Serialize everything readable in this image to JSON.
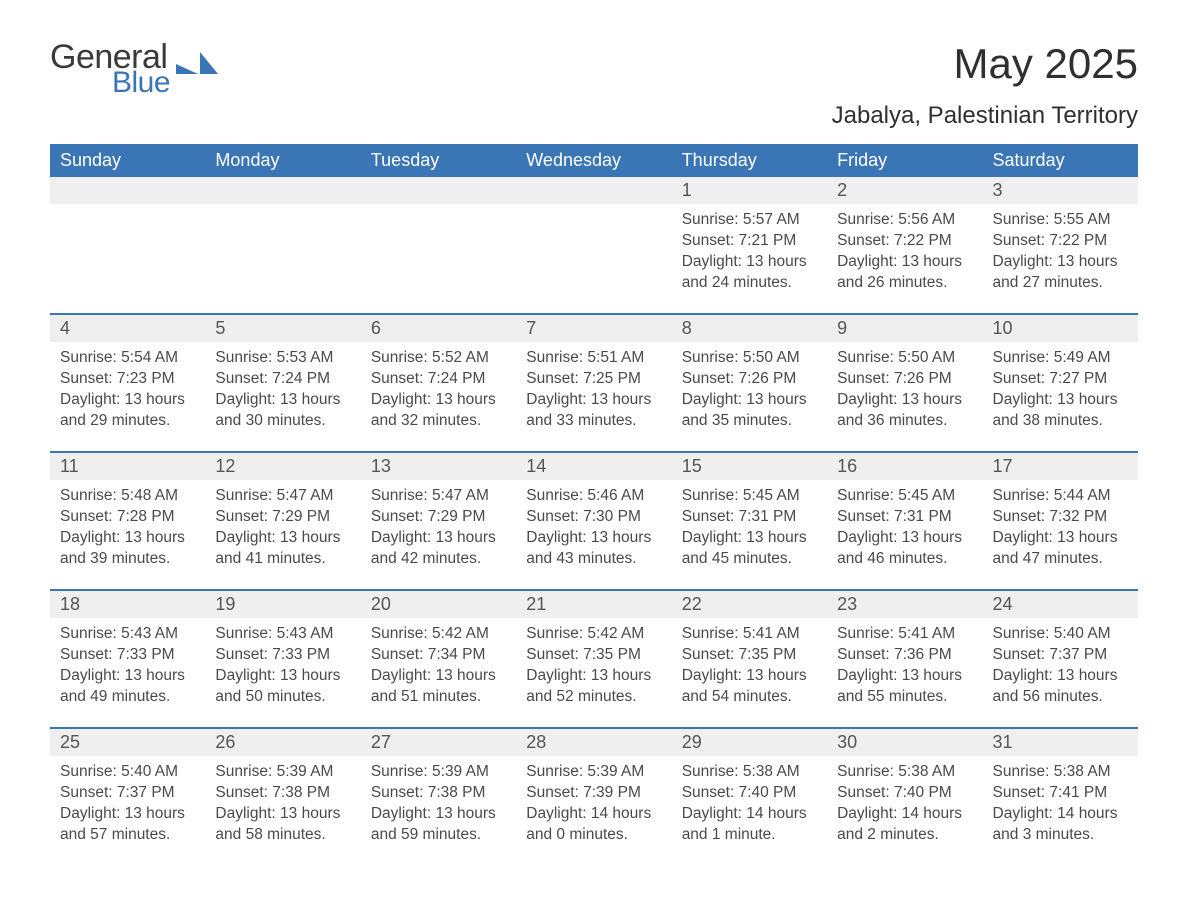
{
  "logo": {
    "general": "General",
    "blue": "Blue",
    "shape_color": "#3a75b6"
  },
  "header": {
    "title": "May 2025",
    "subtitle": "Jabalya, Palestinian Territory"
  },
  "colors": {
    "header_bg": "#3a75b6",
    "header_text": "#ffffff",
    "daynum_bg": "#efefef",
    "row_border": "#3a75b6",
    "body_text": "#4a4a4a",
    "title_text": "#2f2f2f",
    "logo_gray": "#3a3a3a",
    "logo_blue": "#3a75b6",
    "background": "#ffffff"
  },
  "fonts": {
    "title_size_pt": 32,
    "subtitle_size_pt": 18,
    "weekday_size_pt": 14,
    "daynum_size_pt": 14,
    "body_size_pt": 12,
    "family": "Arial"
  },
  "calendar": {
    "type": "table",
    "weekdays": [
      "Sunday",
      "Monday",
      "Tuesday",
      "Wednesday",
      "Thursday",
      "Friday",
      "Saturday"
    ],
    "weeks": [
      [
        null,
        null,
        null,
        null,
        {
          "n": "1",
          "sunrise": "Sunrise: 5:57 AM",
          "sunset": "Sunset: 7:21 PM",
          "daylight": "Daylight: 13 hours and 24 minutes."
        },
        {
          "n": "2",
          "sunrise": "Sunrise: 5:56 AM",
          "sunset": "Sunset: 7:22 PM",
          "daylight": "Daylight: 13 hours and 26 minutes."
        },
        {
          "n": "3",
          "sunrise": "Sunrise: 5:55 AM",
          "sunset": "Sunset: 7:22 PM",
          "daylight": "Daylight: 13 hours and 27 minutes."
        }
      ],
      [
        {
          "n": "4",
          "sunrise": "Sunrise: 5:54 AM",
          "sunset": "Sunset: 7:23 PM",
          "daylight": "Daylight: 13 hours and 29 minutes."
        },
        {
          "n": "5",
          "sunrise": "Sunrise: 5:53 AM",
          "sunset": "Sunset: 7:24 PM",
          "daylight": "Daylight: 13 hours and 30 minutes."
        },
        {
          "n": "6",
          "sunrise": "Sunrise: 5:52 AM",
          "sunset": "Sunset: 7:24 PM",
          "daylight": "Daylight: 13 hours and 32 minutes."
        },
        {
          "n": "7",
          "sunrise": "Sunrise: 5:51 AM",
          "sunset": "Sunset: 7:25 PM",
          "daylight": "Daylight: 13 hours and 33 minutes."
        },
        {
          "n": "8",
          "sunrise": "Sunrise: 5:50 AM",
          "sunset": "Sunset: 7:26 PM",
          "daylight": "Daylight: 13 hours and 35 minutes."
        },
        {
          "n": "9",
          "sunrise": "Sunrise: 5:50 AM",
          "sunset": "Sunset: 7:26 PM",
          "daylight": "Daylight: 13 hours and 36 minutes."
        },
        {
          "n": "10",
          "sunrise": "Sunrise: 5:49 AM",
          "sunset": "Sunset: 7:27 PM",
          "daylight": "Daylight: 13 hours and 38 minutes."
        }
      ],
      [
        {
          "n": "11",
          "sunrise": "Sunrise: 5:48 AM",
          "sunset": "Sunset: 7:28 PM",
          "daylight": "Daylight: 13 hours and 39 minutes."
        },
        {
          "n": "12",
          "sunrise": "Sunrise: 5:47 AM",
          "sunset": "Sunset: 7:29 PM",
          "daylight": "Daylight: 13 hours and 41 minutes."
        },
        {
          "n": "13",
          "sunrise": "Sunrise: 5:47 AM",
          "sunset": "Sunset: 7:29 PM",
          "daylight": "Daylight: 13 hours and 42 minutes."
        },
        {
          "n": "14",
          "sunrise": "Sunrise: 5:46 AM",
          "sunset": "Sunset: 7:30 PM",
          "daylight": "Daylight: 13 hours and 43 minutes."
        },
        {
          "n": "15",
          "sunrise": "Sunrise: 5:45 AM",
          "sunset": "Sunset: 7:31 PM",
          "daylight": "Daylight: 13 hours and 45 minutes."
        },
        {
          "n": "16",
          "sunrise": "Sunrise: 5:45 AM",
          "sunset": "Sunset: 7:31 PM",
          "daylight": "Daylight: 13 hours and 46 minutes."
        },
        {
          "n": "17",
          "sunrise": "Sunrise: 5:44 AM",
          "sunset": "Sunset: 7:32 PM",
          "daylight": "Daylight: 13 hours and 47 minutes."
        }
      ],
      [
        {
          "n": "18",
          "sunrise": "Sunrise: 5:43 AM",
          "sunset": "Sunset: 7:33 PM",
          "daylight": "Daylight: 13 hours and 49 minutes."
        },
        {
          "n": "19",
          "sunrise": "Sunrise: 5:43 AM",
          "sunset": "Sunset: 7:33 PM",
          "daylight": "Daylight: 13 hours and 50 minutes."
        },
        {
          "n": "20",
          "sunrise": "Sunrise: 5:42 AM",
          "sunset": "Sunset: 7:34 PM",
          "daylight": "Daylight: 13 hours and 51 minutes."
        },
        {
          "n": "21",
          "sunrise": "Sunrise: 5:42 AM",
          "sunset": "Sunset: 7:35 PM",
          "daylight": "Daylight: 13 hours and 52 minutes."
        },
        {
          "n": "22",
          "sunrise": "Sunrise: 5:41 AM",
          "sunset": "Sunset: 7:35 PM",
          "daylight": "Daylight: 13 hours and 54 minutes."
        },
        {
          "n": "23",
          "sunrise": "Sunrise: 5:41 AM",
          "sunset": "Sunset: 7:36 PM",
          "daylight": "Daylight: 13 hours and 55 minutes."
        },
        {
          "n": "24",
          "sunrise": "Sunrise: 5:40 AM",
          "sunset": "Sunset: 7:37 PM",
          "daylight": "Daylight: 13 hours and 56 minutes."
        }
      ],
      [
        {
          "n": "25",
          "sunrise": "Sunrise: 5:40 AM",
          "sunset": "Sunset: 7:37 PM",
          "daylight": "Daylight: 13 hours and 57 minutes."
        },
        {
          "n": "26",
          "sunrise": "Sunrise: 5:39 AM",
          "sunset": "Sunset: 7:38 PM",
          "daylight": "Daylight: 13 hours and 58 minutes."
        },
        {
          "n": "27",
          "sunrise": "Sunrise: 5:39 AM",
          "sunset": "Sunset: 7:38 PM",
          "daylight": "Daylight: 13 hours and 59 minutes."
        },
        {
          "n": "28",
          "sunrise": "Sunrise: 5:39 AM",
          "sunset": "Sunset: 7:39 PM",
          "daylight": "Daylight: 14 hours and 0 minutes."
        },
        {
          "n": "29",
          "sunrise": "Sunrise: 5:38 AM",
          "sunset": "Sunset: 7:40 PM",
          "daylight": "Daylight: 14 hours and 1 minute."
        },
        {
          "n": "30",
          "sunrise": "Sunrise: 5:38 AM",
          "sunset": "Sunset: 7:40 PM",
          "daylight": "Daylight: 14 hours and 2 minutes."
        },
        {
          "n": "31",
          "sunrise": "Sunrise: 5:38 AM",
          "sunset": "Sunset: 7:41 PM",
          "daylight": "Daylight: 14 hours and 3 minutes."
        }
      ]
    ]
  }
}
